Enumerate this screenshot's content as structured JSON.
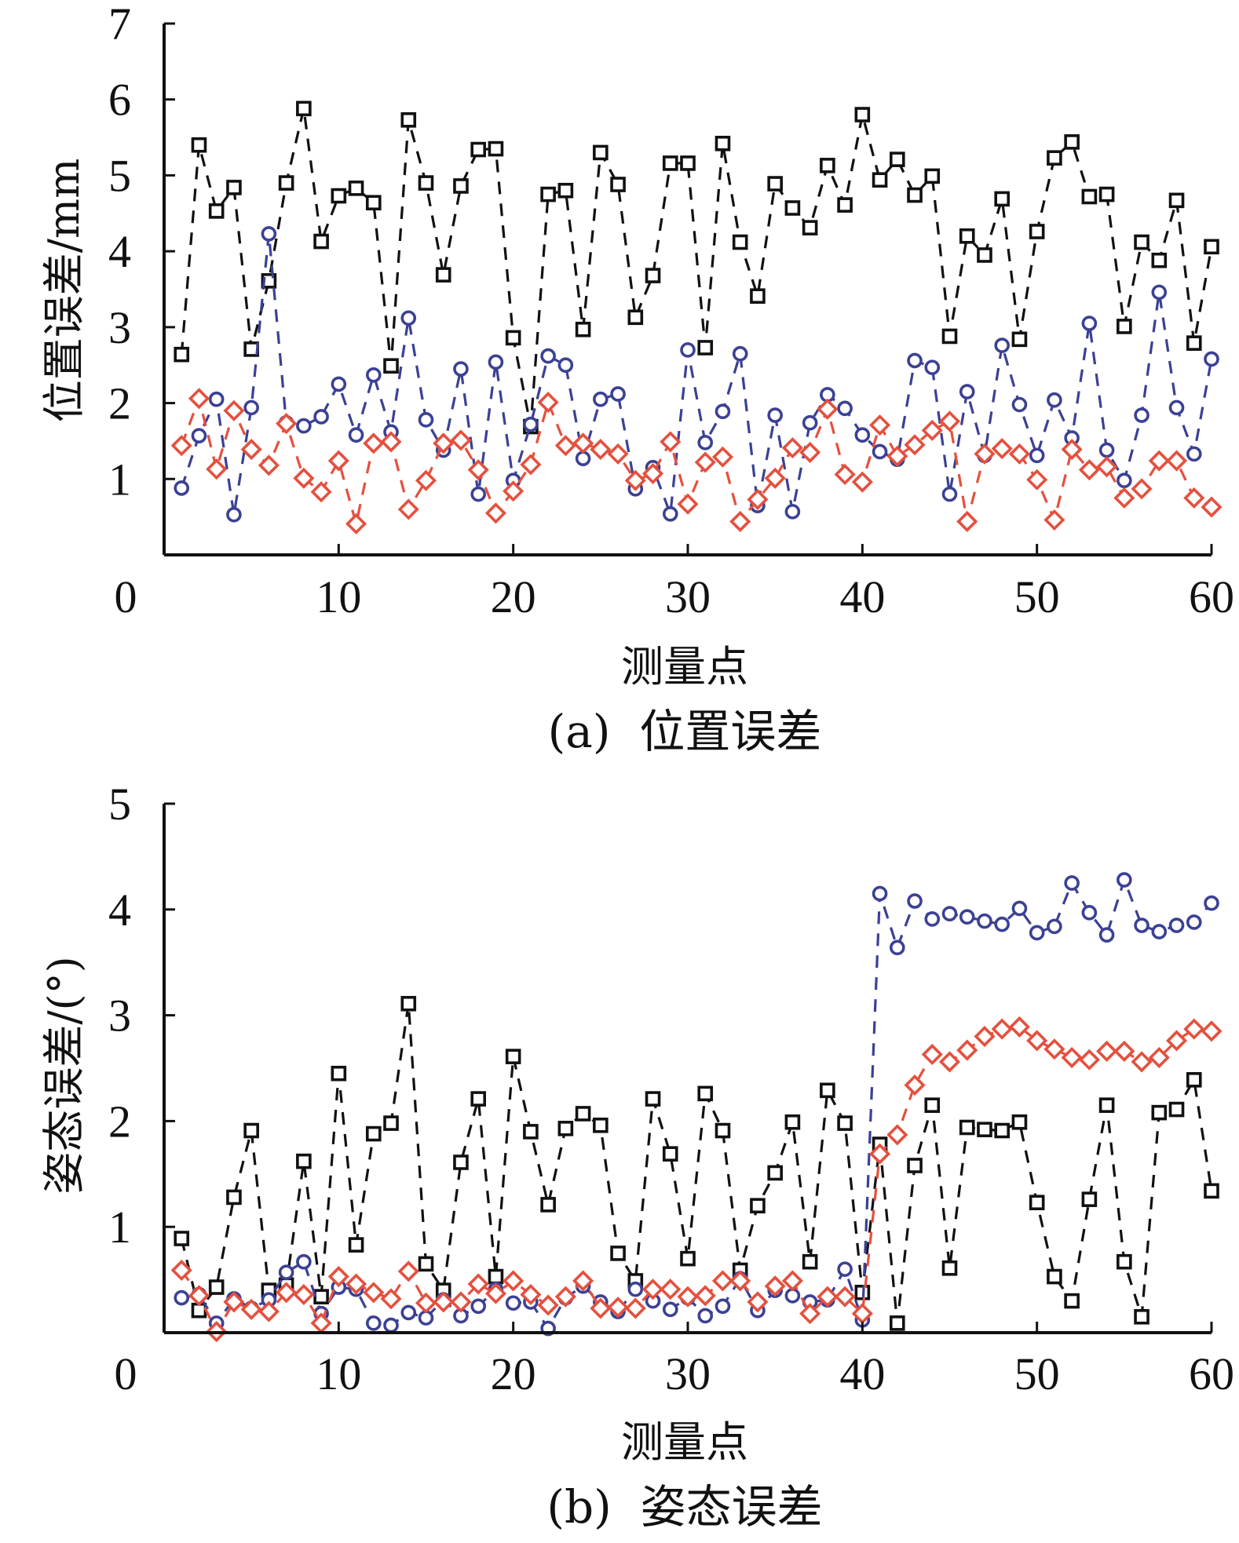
{
  "chart_data": [
    {
      "id": "a",
      "type": "line",
      "title": "(a)  位置误差",
      "xlabel": "测量点",
      "ylabel": "位置误差/mm",
      "xlim": [
        0,
        60
      ],
      "ylim": [
        0,
        7
      ],
      "xticks": [
        0,
        10,
        20,
        30,
        40,
        50,
        60
      ],
      "yticks": [
        1,
        2,
        3,
        4,
        5,
        6,
        7
      ],
      "x_origin_label": "0",
      "grid": false,
      "legend": "none",
      "x": [
        1,
        2,
        3,
        4,
        5,
        6,
        7,
        8,
        9,
        10,
        11,
        12,
        13,
        14,
        15,
        16,
        17,
        18,
        19,
        20,
        21,
        22,
        23,
        24,
        25,
        26,
        27,
        28,
        29,
        30,
        31,
        32,
        33,
        34,
        35,
        36,
        37,
        38,
        39,
        40,
        41,
        42,
        43,
        44,
        45,
        46,
        47,
        48,
        49,
        50,
        51,
        52,
        53,
        54,
        55,
        56,
        57,
        58,
        59,
        60
      ],
      "series": [
        {
          "name": "black-square",
          "color": "#111111",
          "marker": "square",
          "values": [
            2.64,
            5.4,
            4.53,
            4.84,
            2.71,
            3.61,
            4.9,
            5.88,
            4.13,
            4.73,
            4.83,
            4.64,
            2.49,
            5.73,
            4.9,
            3.69,
            4.86,
            5.34,
            5.35,
            2.86,
            1.69,
            4.75,
            4.8,
            2.97,
            5.3,
            4.88,
            3.13,
            3.68,
            5.16,
            5.16,
            2.73,
            5.42,
            4.12,
            3.41,
            4.89,
            4.57,
            4.31,
            5.13,
            4.61,
            5.8,
            4.94,
            5.21,
            4.74,
            4.99,
            2.88,
            4.2,
            3.95,
            4.69,
            2.84,
            4.26,
            5.23,
            5.44,
            4.72,
            4.75,
            3.01,
            4.12,
            3.88,
            4.67,
            2.79,
            4.06
          ]
        },
        {
          "name": "blue-circle",
          "color": "#3b4194",
          "marker": "circle",
          "values": [
            0.88,
            1.57,
            2.05,
            0.53,
            1.94,
            4.23,
            1.74,
            1.7,
            1.82,
            2.25,
            1.58,
            2.37,
            1.62,
            3.12,
            1.78,
            1.38,
            2.45,
            0.8,
            2.54,
            0.98,
            1.72,
            2.62,
            2.5,
            1.27,
            2.05,
            2.12,
            0.87,
            1.15,
            0.54,
            2.7,
            1.48,
            1.89,
            2.65,
            0.65,
            1.84,
            0.57,
            1.74,
            2.11,
            1.93,
            1.58,
            1.36,
            1.26,
            2.56,
            2.47,
            0.8,
            2.15,
            1.31,
            2.76,
            1.98,
            1.31,
            2.04,
            1.54,
            3.05,
            1.38,
            0.98,
            1.84,
            3.46,
            1.94,
            1.33,
            2.58
          ]
        },
        {
          "name": "red-diamond",
          "color": "#e5503e",
          "marker": "diamond",
          "values": [
            1.44,
            2.06,
            1.13,
            1.9,
            1.39,
            1.18,
            1.73,
            1.01,
            0.83,
            1.24,
            0.41,
            1.47,
            1.49,
            0.6,
            0.98,
            1.47,
            1.51,
            1.12,
            0.55,
            0.84,
            1.19,
            2.01,
            1.44,
            1.47,
            1.39,
            1.33,
            0.98,
            1.07,
            1.49,
            0.67,
            1.22,
            1.29,
            0.44,
            0.73,
            1.01,
            1.41,
            1.35,
            1.92,
            1.06,
            0.96,
            1.71,
            1.3,
            1.45,
            1.64,
            1.76,
            0.44,
            1.33,
            1.4,
            1.33,
            0.99,
            0.46,
            1.39,
            1.12,
            1.16,
            0.75,
            0.87,
            1.24,
            1.24,
            0.75,
            0.63
          ]
        }
      ]
    },
    {
      "id": "b",
      "type": "line",
      "title": "(b)  姿态误差",
      "xlabel": "测量点",
      "ylabel": "姿态误差/(°)",
      "xlim": [
        0,
        60
      ],
      "ylim": [
        0,
        5
      ],
      "xticks": [
        0,
        10,
        20,
        30,
        40,
        50,
        60
      ],
      "yticks": [
        1,
        2,
        3,
        4,
        5
      ],
      "x_origin_label": "0",
      "grid": false,
      "legend": "none",
      "x": [
        1,
        2,
        3,
        4,
        5,
        6,
        7,
        8,
        9,
        10,
        11,
        12,
        13,
        14,
        15,
        16,
        17,
        18,
        19,
        20,
        21,
        22,
        23,
        24,
        25,
        26,
        27,
        28,
        29,
        30,
        31,
        32,
        33,
        34,
        35,
        36,
        37,
        38,
        39,
        40,
        41,
        42,
        43,
        44,
        45,
        46,
        47,
        48,
        49,
        50,
        51,
        52,
        53,
        54,
        55,
        56,
        57,
        58,
        59,
        60
      ],
      "series": [
        {
          "name": "black-square",
          "color": "#111111",
          "marker": "square",
          "values": [
            0.89,
            0.21,
            0.43,
            1.28,
            1.91,
            0.4,
            0.45,
            1.62,
            0.34,
            2.45,
            0.83,
            1.88,
            1.98,
            3.11,
            0.65,
            0.4,
            1.61,
            2.21,
            0.53,
            2.61,
            1.9,
            1.21,
            1.93,
            2.07,
            1.96,
            0.75,
            0.49,
            2.21,
            1.69,
            0.7,
            2.26,
            1.91,
            0.59,
            1.2,
            1.51,
            1.99,
            0.67,
            2.29,
            1.98,
            0.38,
            1.78,
            0.09,
            1.58,
            2.15,
            0.61,
            1.94,
            1.92,
            1.91,
            1.99,
            1.23,
            0.53,
            0.3,
            1.26,
            2.15,
            0.67,
            0.15,
            2.08,
            2.11,
            2.39,
            1.34
          ]
        },
        {
          "name": "blue-circle",
          "color": "#3b4194",
          "marker": "circle",
          "values": [
            0.33,
            0.36,
            0.09,
            0.32,
            0.23,
            0.31,
            0.57,
            0.67,
            0.18,
            0.43,
            0.41,
            0.09,
            0.07,
            0.19,
            0.14,
            0.31,
            0.16,
            0.25,
            0.41,
            0.28,
            0.29,
            0.04,
            0.33,
            0.44,
            0.29,
            0.2,
            0.41,
            0.3,
            0.22,
            0.33,
            0.16,
            0.25,
            0.51,
            0.21,
            0.4,
            0.35,
            0.29,
            0.31,
            0.6,
            0.12,
            4.15,
            3.64,
            4.08,
            3.91,
            3.96,
            3.93,
            3.89,
            3.86,
            4.01,
            3.78,
            3.84,
            4.25,
            3.97,
            3.76,
            4.28,
            3.85,
            3.79,
            3.85,
            3.88,
            4.06
          ]
        },
        {
          "name": "red-diamond",
          "color": "#e5503e",
          "marker": "diamond",
          "values": [
            0.59,
            0.35,
            0.01,
            0.29,
            0.22,
            0.2,
            0.38,
            0.36,
            0.09,
            0.53,
            0.46,
            0.38,
            0.32,
            0.58,
            0.28,
            0.29,
            0.29,
            0.46,
            0.37,
            0.49,
            0.36,
            0.26,
            0.34,
            0.49,
            0.23,
            0.24,
            0.23,
            0.41,
            0.41,
            0.34,
            0.35,
            0.49,
            0.49,
            0.29,
            0.44,
            0.49,
            0.18,
            0.34,
            0.34,
            0.18,
            1.69,
            1.87,
            2.34,
            2.63,
            2.56,
            2.67,
            2.8,
            2.87,
            2.89,
            2.76,
            2.68,
            2.6,
            2.58,
            2.66,
            2.66,
            2.56,
            2.6,
            2.76,
            2.87,
            2.85
          ]
        }
      ]
    }
  ]
}
